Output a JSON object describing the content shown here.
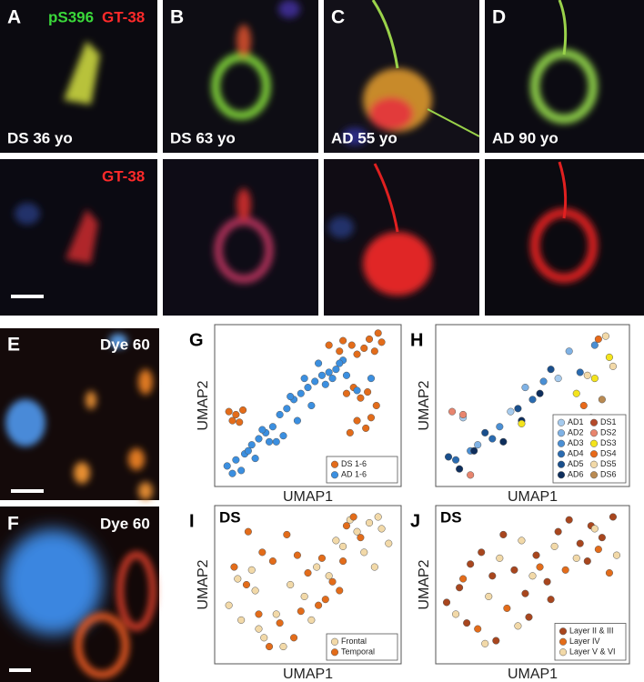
{
  "panels": [
    {
      "letter": "A",
      "label": "DS 36 yo"
    },
    {
      "letter": "B",
      "label": "DS 63 yo"
    },
    {
      "letter": "C",
      "label": "AD 55 yo"
    },
    {
      "letter": "D",
      "label": "AD 90 yo"
    }
  ],
  "stain_labels": {
    "green": "pS396",
    "red": "GT-38",
    "lower_red": "GT-38"
  },
  "dye_panels": [
    {
      "letter": "E",
      "label": "Dye 60"
    },
    {
      "letter": "F",
      "label": "Dye 60"
    }
  ],
  "chart_data": [
    {
      "type": "scatter",
      "letter": "G",
      "x_label": "UMAP1",
      "y_label": "UMAP2",
      "xlim": [
        0,
        10
      ],
      "ylim": [
        0,
        10
      ],
      "legend": "lower right",
      "series": [
        {
          "name": "DS 1-6",
          "color": "#e36c1a",
          "x": [
            0.5,
            0.9,
            1.3,
            0.7,
            1.1,
            6.2,
            6.8,
            7.0,
            7.5,
            7.8,
            8.2,
            8.5,
            8.8,
            9.0,
            7.2,
            7.6,
            8.0,
            8.4,
            7.8,
            8.3,
            8.6,
            9.2,
            7.4,
            8.9
          ],
          "y": [
            4.6,
            4.4,
            4.7,
            4.0,
            3.9,
            9.0,
            8.6,
            9.3,
            9.0,
            8.4,
            8.8,
            9.4,
            8.6,
            9.8,
            5.8,
            6.2,
            5.5,
            5.9,
            4.0,
            3.5,
            4.2,
            9.2,
            3.2,
            5.0
          ]
        },
        {
          "name": "AD 1-6",
          "color": "#3b8fe0",
          "x": [
            0.4,
            0.9,
            1.4,
            1.8,
            2.2,
            2.6,
            3.0,
            3.4,
            3.8,
            4.2,
            4.6,
            5.0,
            5.4,
            5.8,
            6.2,
            6.6,
            7.0,
            1.2,
            2.0,
            2.8,
            3.6,
            4.4,
            5.2,
            6.0,
            6.8,
            0.7,
            1.6,
            2.4,
            3.2,
            4.0,
            4.8,
            5.6,
            6.4,
            7.2,
            7.8,
            8.6
          ],
          "y": [
            1.0,
            1.4,
            1.8,
            2.4,
            2.8,
            3.2,
            3.6,
            4.4,
            4.8,
            5.4,
            5.8,
            6.2,
            6.6,
            7.0,
            7.2,
            7.4,
            8.0,
            0.7,
            1.5,
            2.6,
            3.0,
            4.0,
            5.0,
            6.4,
            7.8,
            0.5,
            2.0,
            3.4,
            2.6,
            5.6,
            6.8,
            7.8,
            6.8,
            7.0,
            6.0,
            6.8
          ]
        }
      ]
    },
    {
      "type": "scatter",
      "letter": "H",
      "x_label": "UMAP1",
      "y_label": "UMAP2",
      "xlim": [
        0,
        10
      ],
      "ylim": [
        0,
        10
      ],
      "legend": "lower right",
      "series": [
        {
          "name": "AD1",
          "color": "#a6cbee",
          "x": [
            1.2,
            3.8,
            6.4
          ],
          "y": [
            4.2,
            4.6,
            6.8
          ]
        },
        {
          "name": "AD2",
          "color": "#7fb2e5",
          "x": [
            2.0,
            4.6,
            7.0
          ],
          "y": [
            2.4,
            6.2,
            8.6
          ]
        },
        {
          "name": "AD3",
          "color": "#4a8fd4",
          "x": [
            3.2,
            5.6,
            8.4,
            1.6
          ],
          "y": [
            3.6,
            6.6,
            9.0,
            2.0
          ]
        },
        {
          "name": "AD4",
          "color": "#2a6bb0",
          "x": [
            0.8,
            2.8,
            5.0,
            7.6
          ],
          "y": [
            1.4,
            2.8,
            5.4,
            7.2
          ]
        },
        {
          "name": "AD5",
          "color": "#1a4f8c",
          "x": [
            0.4,
            2.4,
            4.2,
            6.0
          ],
          "y": [
            1.6,
            3.2,
            4.8,
            7.4
          ]
        },
        {
          "name": "AD6",
          "color": "#0e2e5c",
          "x": [
            1.0,
            1.8,
            3.4,
            4.4,
            5.4
          ],
          "y": [
            0.8,
            2.0,
            2.6,
            4.0,
            5.8
          ]
        },
        {
          "name": "DS1",
          "color": "#b54a2b",
          "x": [
            7.8,
            8.2,
            8.8
          ],
          "y": [
            3.6,
            4.2,
            3.2
          ]
        },
        {
          "name": "DS2",
          "color": "#e8856e",
          "x": [
            0.6,
            1.2,
            1.6
          ],
          "y": [
            4.6,
            4.4,
            0.4
          ]
        },
        {
          "name": "DS3",
          "color": "#f4e41c",
          "x": [
            4.4,
            7.4,
            8.4,
            9.2
          ],
          "y": [
            3.8,
            5.8,
            6.8,
            8.2
          ]
        },
        {
          "name": "DS4",
          "color": "#e86a1a",
          "x": [
            7.8,
            8.6
          ],
          "y": [
            5.0,
            9.4
          ]
        },
        {
          "name": "DS5",
          "color": "#f2d9a8",
          "x": [
            9.0,
            9.4,
            8.0
          ],
          "y": [
            9.6,
            7.6,
            7.0
          ]
        },
        {
          "name": "DS6",
          "color": "#b98a52",
          "x": [
            8.2,
            8.8
          ],
          "y": [
            2.6,
            5.4
          ]
        }
      ]
    },
    {
      "type": "scatter",
      "letter": "I",
      "annotation": "DS",
      "x_label": "UMAP1",
      "y_label": "UMAP2",
      "xlim": [
        0,
        10
      ],
      "ylim": [
        0,
        10
      ],
      "legend": "lower right",
      "series": [
        {
          "name": "Frontal",
          "color": "#f2d9a8",
          "x": [
            0.5,
            1.2,
            2.0,
            2.5,
            3.2,
            1.8,
            4.0,
            4.8,
            5.5,
            6.2,
            7.0,
            7.8,
            8.5,
            9.2,
            9.6,
            8.8,
            6.6,
            5.2,
            3.6,
            2.2,
            1.0,
            7.4,
            8.2,
            9.0
          ],
          "y": [
            3.6,
            2.6,
            4.6,
            1.4,
            3.0,
            6.0,
            5.0,
            4.2,
            6.2,
            5.6,
            7.6,
            8.6,
            9.2,
            8.8,
            7.8,
            6.2,
            8.0,
            2.6,
            0.8,
            2.0,
            5.4,
            9.4,
            7.2,
            9.6
          ]
        },
        {
          "name": "Temporal",
          "color": "#e36c1a",
          "x": [
            0.8,
            1.5,
            2.4,
            3.0,
            3.8,
            4.4,
            5.0,
            5.8,
            6.4,
            7.2,
            8.0,
            2.8,
            3.4,
            4.2,
            5.6,
            6.8,
            7.6,
            1.6,
            2.2,
            4.6,
            6.0,
            7.0
          ],
          "y": [
            6.2,
            5.0,
            7.2,
            6.6,
            8.4,
            7.0,
            5.8,
            6.8,
            5.2,
            9.0,
            8.2,
            0.8,
            2.4,
            1.4,
            3.6,
            4.6,
            9.6,
            8.6,
            3.0,
            3.2,
            4.0,
            6.6
          ]
        }
      ]
    },
    {
      "type": "scatter",
      "letter": "J",
      "annotation": "DS",
      "x_label": "UMAP1",
      "y_label": "UMAP2",
      "xlim": [
        0,
        10
      ],
      "ylim": [
        0,
        10
      ],
      "legend": "lower right",
      "series": [
        {
          "name": "Layer II & III",
          "color": "#a8461e",
          "x": [
            0.3,
            1.0,
            1.6,
            2.2,
            2.8,
            3.4,
            4.0,
            4.6,
            5.2,
            5.8,
            6.4,
            7.0,
            7.6,
            8.2,
            8.8,
            9.4,
            1.4,
            3.0,
            4.8,
            6.0,
            8.0
          ],
          "y": [
            3.8,
            4.8,
            6.4,
            7.2,
            5.6,
            8.4,
            6.0,
            4.4,
            7.0,
            5.2,
            8.6,
            9.4,
            7.8,
            9.0,
            8.2,
            9.6,
            2.4,
            1.2,
            2.8,
            4.0,
            6.6
          ]
        },
        {
          "name": "Layer IV",
          "color": "#e36c1a",
          "x": [
            2.0,
            3.6,
            5.4,
            6.8,
            8.6,
            9.2,
            1.2
          ],
          "y": [
            2.0,
            3.4,
            6.2,
            6.0,
            7.4,
            5.8,
            5.4
          ]
        },
        {
          "name": "Layer V & VI",
          "color": "#f2d9a8",
          "x": [
            0.8,
            2.4,
            3.2,
            4.2,
            5.0,
            6.2,
            7.4,
            8.4,
            9.6,
            2.6,
            4.4
          ],
          "y": [
            3.0,
            1.0,
            6.8,
            2.2,
            5.6,
            7.6,
            6.8,
            8.8,
            7.0,
            4.2,
            8.0
          ]
        }
      ]
    }
  ]
}
